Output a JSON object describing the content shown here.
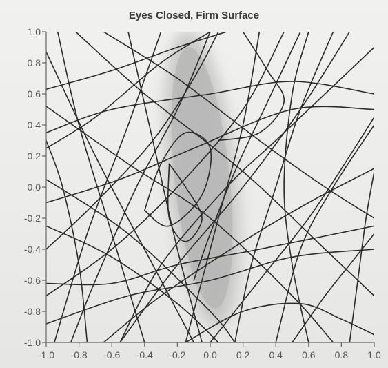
{
  "chart_data": {
    "type": "line",
    "title": "Eyes Closed, Firm Surface",
    "xlabel": "",
    "ylabel": "",
    "xlim": [
      -1.0,
      1.0
    ],
    "ylim": [
      -1.0,
      1.0
    ],
    "x_ticks": [
      "-1.0",
      "-0.8",
      "-0.6",
      "-0.4",
      "-0.2",
      "0.0",
      "0.2",
      "0.4",
      "0.6",
      "0.8",
      "1.0"
    ],
    "y_ticks": [
      "1.0",
      "0.8",
      "0.6",
      "0.4",
      "0.2",
      "0.0",
      "-0.2",
      "-0.4",
      "-0.6",
      "-0.8",
      "-1.0"
    ],
    "grid": false,
    "region": {
      "label": "",
      "color": "#a9a9a9",
      "center": [
        -0.05,
        0.06
      ],
      "radius_x": 0.21,
      "radius_y": 0.96,
      "rotation_deg": -6
    },
    "series": [
      {
        "points": [
          [
            -1.0,
            0.87
          ],
          [
            -0.7,
            0.2
          ],
          [
            -0.35,
            -0.5
          ],
          [
            -0.1,
            -1.0
          ]
        ]
      },
      {
        "points": [
          [
            -1.0,
            0.63
          ],
          [
            -0.6,
            0.75
          ],
          [
            -0.2,
            0.9
          ],
          [
            0.1,
            1.0
          ]
        ]
      },
      {
        "points": [
          [
            -1.0,
            0.35
          ],
          [
            -0.6,
            0.5
          ],
          [
            0.0,
            0.6
          ],
          [
            0.5,
            0.68
          ],
          [
            1.0,
            0.6
          ]
        ]
      },
      {
        "points": [
          [
            -1.0,
            -0.1
          ],
          [
            -0.55,
            0.05
          ],
          [
            -0.1,
            0.25
          ],
          [
            0.5,
            0.5
          ],
          [
            1.0,
            0.5
          ]
        ]
      },
      {
        "points": [
          [
            -1.0,
            -0.62
          ],
          [
            -0.6,
            -0.62
          ],
          [
            -0.2,
            -0.5
          ],
          [
            0.3,
            -0.4
          ],
          [
            1.0,
            -0.25
          ]
        ]
      },
      {
        "points": [
          [
            -1.0,
            -0.88
          ],
          [
            -0.5,
            -0.7
          ],
          [
            0.0,
            -0.6
          ],
          [
            0.5,
            -0.45
          ],
          [
            1.0,
            -0.4
          ]
        ]
      },
      {
        "points": [
          [
            -0.93,
            1.0
          ],
          [
            -0.8,
            0.4
          ],
          [
            -0.6,
            -0.3
          ],
          [
            -0.4,
            -1.0
          ]
        ]
      },
      {
        "points": [
          [
            -0.82,
            1.0
          ],
          [
            -0.4,
            0.6
          ],
          [
            0.2,
            0.1
          ],
          [
            0.7,
            -0.4
          ],
          [
            1.0,
            -0.7
          ]
        ]
      },
      {
        "points": [
          [
            -0.5,
            1.0
          ],
          [
            -0.35,
            0.3
          ],
          [
            -0.2,
            -0.4
          ],
          [
            -0.05,
            -1.0
          ]
        ]
      },
      {
        "points": [
          [
            -0.3,
            1.0
          ],
          [
            -0.5,
            0.4
          ],
          [
            -0.75,
            -0.3
          ],
          [
            -0.95,
            -1.0
          ]
        ]
      },
      {
        "points": [
          [
            0.0,
            1.0
          ],
          [
            -0.2,
            0.5
          ],
          [
            -0.45,
            0.0
          ],
          [
            -0.7,
            -0.6
          ],
          [
            -0.85,
            -1.0
          ]
        ]
      },
      {
        "points": [
          [
            0.3,
            1.0
          ],
          [
            0.2,
            0.4
          ],
          [
            0.05,
            -0.2
          ],
          [
            -0.15,
            -1.0
          ]
        ]
      },
      {
        "points": [
          [
            0.55,
            1.0
          ],
          [
            0.35,
            0.55
          ],
          [
            0.15,
            0.1
          ],
          [
            0.0,
            -0.3
          ],
          [
            -0.1,
            -0.6
          ]
        ]
      },
      {
        "points": [
          [
            0.75,
            1.0
          ],
          [
            0.55,
            0.5
          ],
          [
            0.4,
            0.0
          ],
          [
            0.25,
            -0.5
          ],
          [
            0.15,
            -1.0
          ]
        ]
      },
      {
        "points": [
          [
            1.0,
            0.9
          ],
          [
            0.7,
            0.6
          ],
          [
            0.4,
            0.3
          ],
          [
            0.1,
            0.0
          ],
          [
            -0.3,
            -0.5
          ],
          [
            -0.55,
            -1.0
          ]
        ]
      },
      {
        "points": [
          [
            1.0,
            0.4
          ],
          [
            0.75,
            0.0
          ],
          [
            0.55,
            -0.4
          ],
          [
            0.4,
            -1.0
          ]
        ]
      },
      {
        "points": [
          [
            1.0,
            0.12
          ],
          [
            0.6,
            -0.1
          ],
          [
            0.2,
            -0.35
          ],
          [
            -0.3,
            -0.7
          ],
          [
            -0.65,
            -1.0
          ]
        ]
      },
      {
        "points": [
          [
            -1.0,
            0.52
          ],
          [
            -0.5,
            0.15
          ],
          [
            0.0,
            -0.2
          ],
          [
            0.5,
            -0.7
          ],
          [
            0.75,
            -1.0
          ]
        ]
      },
      {
        "points": [
          [
            -1.0,
            0.05
          ],
          [
            -0.5,
            -0.3
          ],
          [
            0.0,
            -0.8
          ],
          [
            0.15,
            -1.0
          ]
        ]
      },
      {
        "points": [
          [
            -0.65,
            1.0
          ],
          [
            -0.2,
            0.7
          ],
          [
            0.3,
            0.3
          ],
          [
            0.7,
            0.0
          ],
          [
            1.0,
            -0.2
          ]
        ]
      },
      {
        "points": [
          [
            -1.0,
            0.25
          ],
          [
            -0.7,
            0.45
          ],
          [
            -0.3,
            0.8
          ],
          [
            0.0,
            1.0
          ]
        ]
      },
      {
        "points": [
          [
            -1.0,
            -0.4
          ],
          [
            -0.7,
            -0.1
          ],
          [
            -0.35,
            0.3
          ],
          [
            -0.1,
            0.7
          ],
          [
            0.05,
            1.0
          ]
        ]
      },
      {
        "points": [
          [
            -1.0,
            -0.7
          ],
          [
            -0.6,
            -0.4
          ],
          [
            -0.2,
            0.0
          ],
          [
            0.2,
            0.5
          ],
          [
            0.45,
            1.0
          ]
        ]
      },
      {
        "points": [
          [
            -0.55,
            -1.0
          ],
          [
            -0.2,
            -0.5
          ],
          [
            0.2,
            0.0
          ],
          [
            0.55,
            0.5
          ],
          [
            0.85,
            1.0
          ]
        ]
      },
      {
        "points": [
          [
            0.0,
            -1.0
          ],
          [
            0.3,
            -0.6
          ],
          [
            0.6,
            -0.2
          ],
          [
            0.85,
            0.2
          ],
          [
            1.0,
            0.45
          ]
        ]
      },
      {
        "points": [
          [
            0.5,
            -1.0
          ],
          [
            0.7,
            -0.7
          ],
          [
            0.85,
            -0.5
          ],
          [
            1.0,
            -0.3
          ]
        ]
      },
      {
        "points": [
          [
            -0.15,
            -1.0
          ],
          [
            0.2,
            -0.8
          ],
          [
            0.55,
            -0.75
          ],
          [
            0.8,
            -0.85
          ],
          [
            1.0,
            -0.95
          ]
        ]
      },
      {
        "points": [
          [
            0.85,
            -1.0
          ],
          [
            0.9,
            -0.6
          ],
          [
            0.95,
            -0.2
          ],
          [
            1.0,
            0.1
          ]
        ]
      },
      {
        "points": [
          [
            0.6,
            -1.0
          ],
          [
            0.5,
            -0.5
          ],
          [
            0.45,
            0.0
          ],
          [
            0.5,
            0.6
          ],
          [
            0.6,
            1.0
          ]
        ]
      },
      {
        "points": [
          [
            -0.75,
            -1.0
          ],
          [
            -0.8,
            -0.5
          ],
          [
            -0.9,
            0.0
          ],
          [
            -1.0,
            0.3
          ]
        ]
      },
      {
        "points": [
          [
            -1.0,
            -0.25
          ],
          [
            -0.6,
            -0.45
          ],
          [
            -0.2,
            -0.75
          ],
          [
            0.05,
            -1.0
          ]
        ]
      },
      {
        "points": [
          [
            0.2,
            1.0
          ],
          [
            0.35,
            0.75
          ],
          [
            0.45,
            0.55
          ],
          [
            0.3,
            0.35
          ],
          [
            0.05,
            0.3
          ]
        ]
      },
      {
        "points": [
          [
            -0.4,
            -0.15
          ],
          [
            -0.3,
            0.15
          ],
          [
            -0.15,
            0.35
          ],
          [
            0.0,
            0.25
          ],
          [
            -0.05,
            -0.05
          ],
          [
            -0.25,
            -0.25
          ],
          [
            -0.4,
            -0.15
          ]
        ]
      },
      {
        "points": [
          [
            -0.25,
            0.15
          ],
          [
            -0.15,
            0.0
          ],
          [
            -0.05,
            -0.2
          ],
          [
            -0.15,
            -0.35
          ],
          [
            -0.25,
            -0.2
          ],
          [
            -0.25,
            0.15
          ]
        ]
      }
    ]
  }
}
